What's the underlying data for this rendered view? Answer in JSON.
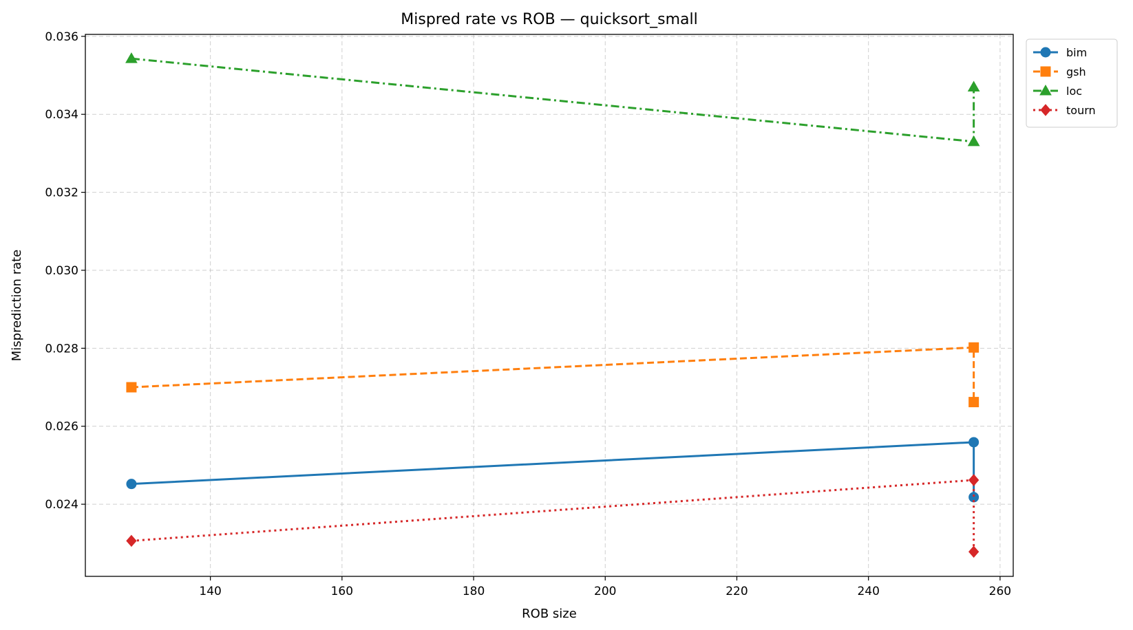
{
  "chart_data": {
    "type": "line",
    "title": "Mispred rate vs ROB — quicksort_small",
    "xlabel": "ROB size",
    "ylabel": "Misprediction rate",
    "xlim": [
      121,
      262
    ],
    "ylim": [
      0.02215,
      0.03605
    ],
    "xticks": [
      140,
      160,
      180,
      200,
      220,
      240,
      260
    ],
    "xtick_labels": [
      "140",
      "160",
      "180",
      "200",
      "220",
      "240",
      "260"
    ],
    "yticks": [
      0.024,
      0.026,
      0.028,
      0.03,
      0.032,
      0.034,
      0.036
    ],
    "ytick_labels": [
      "0.024",
      "0.026",
      "0.028",
      "0.030",
      "0.032",
      "0.034",
      "0.036"
    ],
    "grid": true,
    "legend_position": "outside top-right",
    "series": [
      {
        "name": "bim",
        "color": "#1f77b4",
        "marker": "circle",
        "linestyle": "solid",
        "points": [
          [
            128,
            0.02452
          ],
          [
            256,
            0.02559
          ],
          [
            256,
            0.02418
          ]
        ]
      },
      {
        "name": "gsh",
        "color": "#ff7f0e",
        "marker": "square",
        "linestyle": "dashed",
        "points": [
          [
            128,
            0.027
          ],
          [
            256,
            0.02802
          ],
          [
            256,
            0.02662
          ]
        ]
      },
      {
        "name": "loc",
        "color": "#2ca02c",
        "marker": "triangle",
        "linestyle": "dashdot",
        "points": [
          [
            128,
            0.03543
          ],
          [
            256,
            0.0333
          ],
          [
            256,
            0.0347
          ]
        ]
      },
      {
        "name": "tourn",
        "color": "#d62728",
        "marker": "diamond",
        "linestyle": "dotted",
        "points": [
          [
            128,
            0.02306
          ],
          [
            256,
            0.02462
          ],
          [
            256,
            0.02278
          ]
        ]
      }
    ]
  }
}
